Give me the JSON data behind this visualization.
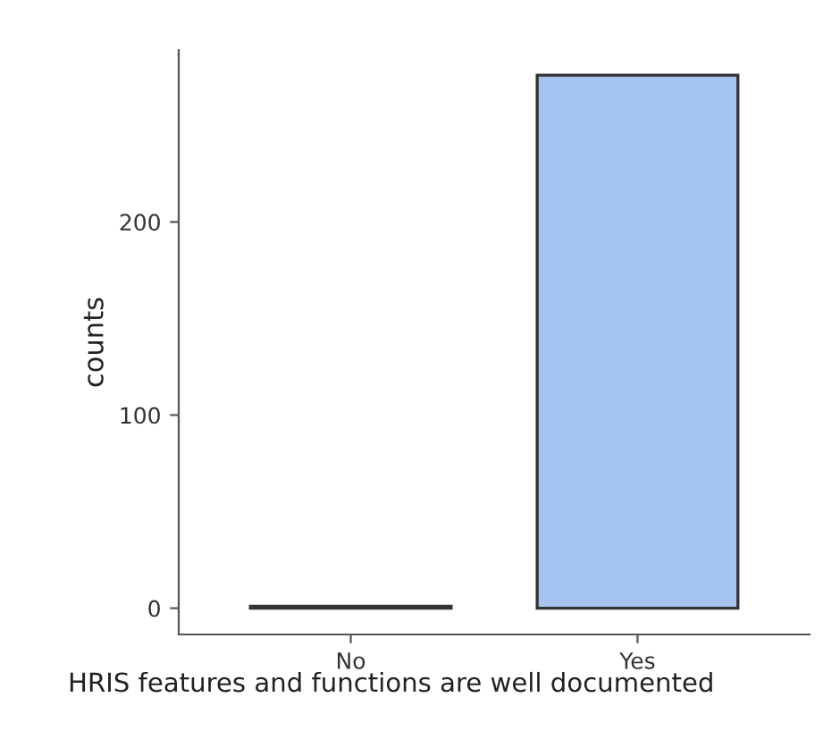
{
  "chart_data": {
    "type": "bar",
    "xlabel": "HRIS features and functions are well documented",
    "ylabel": "counts",
    "categories": [
      "No",
      "Yes"
    ],
    "values": [
      1,
      276
    ],
    "color": "#a6c4f0",
    "ylim": [
      -13.6,
      289
    ],
    "yticks": [
      0,
      100,
      200
    ],
    "grid": false
  }
}
